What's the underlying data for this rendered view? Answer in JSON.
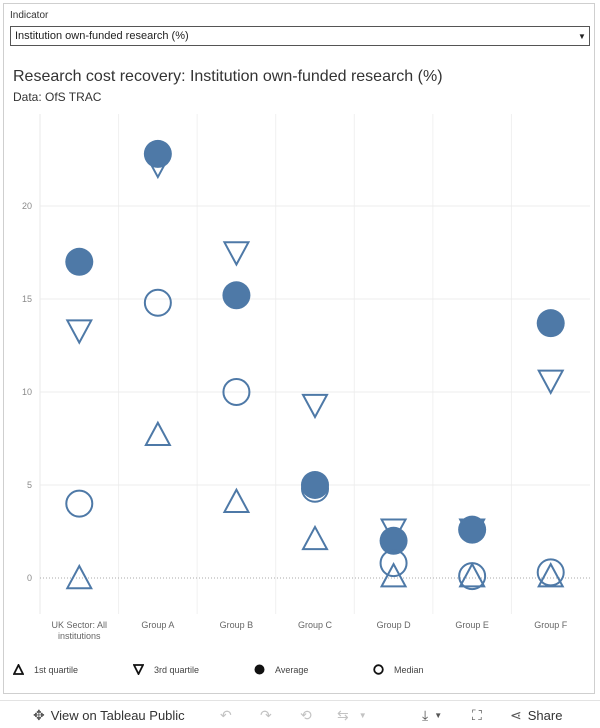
{
  "filter": {
    "label": "Indicator",
    "selected": "Institution own-funded research (%)"
  },
  "header": {
    "title": "Research cost recovery: Institution own-funded research (%)",
    "subtitle": "Data: OfS TRAC"
  },
  "legend": {
    "items": [
      {
        "label": "1st quartile",
        "icon": "triangle-up-outline"
      },
      {
        "label": "3rd quartile",
        "icon": "triangle-down-outline"
      },
      {
        "label": "Average",
        "icon": "circle-filled"
      },
      {
        "label": "Median",
        "icon": "circle-outline"
      }
    ]
  },
  "toolbar": {
    "view_label": "View on Tableau Public",
    "share_label": "Share"
  },
  "chart_data": {
    "type": "scatter",
    "categories": [
      [
        "UK Sector: All",
        "institutions"
      ],
      [
        "Group A"
      ],
      [
        "Group B"
      ],
      [
        "Group C"
      ],
      [
        "Group D"
      ],
      [
        "Group E"
      ],
      [
        "Group F"
      ]
    ],
    "ylim": [
      -2,
      25
    ],
    "yticks": [
      0,
      5,
      10,
      15,
      20
    ],
    "grid": true,
    "reference_line": 0,
    "legend_placement": "bottom",
    "color": "#4e79a7",
    "series": [
      {
        "name": "1st quartile",
        "marker": "triangle-up",
        "values": [
          0,
          7.7,
          4.1,
          2.1,
          0.1,
          0.1,
          0.1
        ]
      },
      {
        "name": "3rd quartile",
        "marker": "triangle-down",
        "values": [
          13.3,
          22.2,
          17.5,
          9.3,
          2.6,
          2.6,
          10.6
        ]
      },
      {
        "name": "Average",
        "marker": "circle-filled",
        "values": [
          17,
          22.8,
          15.2,
          5,
          2,
          2.6,
          13.7
        ]
      },
      {
        "name": "Median",
        "marker": "circle-outline",
        "values": [
          4,
          14.8,
          10,
          4.8,
          0.8,
          0.1,
          0.3
        ]
      }
    ]
  }
}
